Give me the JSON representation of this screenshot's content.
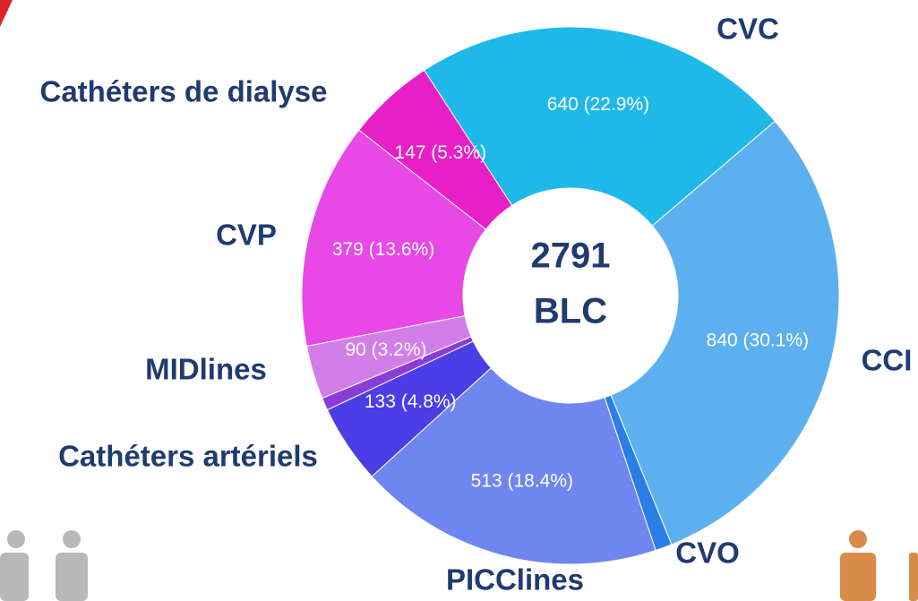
{
  "chart_data": {
    "type": "donut",
    "categories": [
      "CVC",
      "CCI",
      "CVO",
      "PICClines",
      "Cathéters artériels",
      null,
      "MIDlines",
      "CVP",
      "Cathéters de dialyse"
    ],
    "values": [
      640,
      840,
      28,
      513,
      133,
      21,
      90,
      379,
      147
    ],
    "value_labels": [
      "640 (22.9%)",
      "840 (30.1%)",
      null,
      "513 (18.4%)",
      "133 (4.8%)",
      null,
      "90 (3.2%)",
      "379 (13.6%)",
      "147 (5.3%)"
    ],
    "colors": [
      "#1fb9e9",
      "#5cb0f0",
      "#2a7fe6",
      "#6f86f0",
      "#4b3ee6",
      "#8b3cd8",
      "#d27ee9",
      "#e848e6",
      "#e81fc6"
    ],
    "total": 2791,
    "total_label": "BLC"
  }
}
